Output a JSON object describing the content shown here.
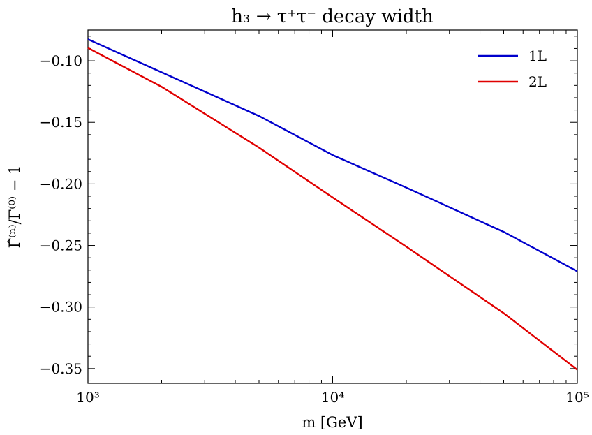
{
  "chart_data": {
    "type": "line",
    "title": "h₃ → τ⁺τ⁻ decay width",
    "xlabel": "m [GeV]",
    "ylabel": "Γ̂⁽ⁿ⁾/Γ⁽⁰⁾ − 1",
    "xscale": "log",
    "xlim": [
      1000,
      100000
    ],
    "ylim": [
      -0.362,
      -0.075
    ],
    "x_ticks": [
      {
        "value": 1000,
        "label": "10³"
      },
      {
        "value": 10000,
        "label": "10⁴"
      },
      {
        "value": 100000,
        "label": "10⁵"
      }
    ],
    "y_ticks": [
      {
        "value": -0.1,
        "label": "−0.10"
      },
      {
        "value": -0.15,
        "label": "−0.15"
      },
      {
        "value": -0.2,
        "label": "−0.20"
      },
      {
        "value": -0.25,
        "label": "−0.25"
      },
      {
        "value": -0.3,
        "label": "−0.30"
      },
      {
        "value": -0.35,
        "label": "−0.35"
      }
    ],
    "grid": false,
    "legend_position": "top-right",
    "series": [
      {
        "name": "1L",
        "color": "#0000cc",
        "x": [
          1000,
          2000,
          5000,
          10000,
          20000,
          50000,
          100000
        ],
        "y": [
          -0.0825,
          -0.1093,
          -0.1448,
          -0.1766,
          -0.203,
          -0.239,
          -0.271
        ]
      },
      {
        "name": "2L",
        "color": "#e00000",
        "x": [
          1000,
          2000,
          5000,
          10000,
          20000,
          50000,
          100000
        ],
        "y": [
          -0.0895,
          -0.1211,
          -0.1705,
          -0.211,
          -0.251,
          -0.305,
          -0.351
        ]
      }
    ]
  }
}
